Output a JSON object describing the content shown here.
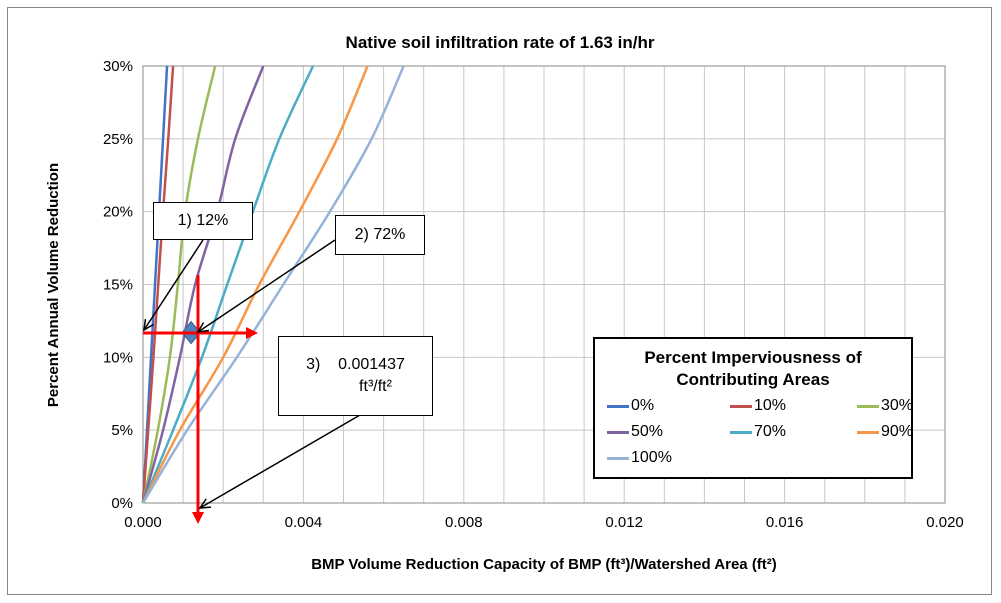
{
  "chart_data": {
    "type": "line",
    "title": "Native soil infiltration rate of 1.63 in/hr",
    "xlabel": "BMP Volume Reduction Capacity of BMP (ft³)/Watershed Area (ft²)",
    "ylabel": "Percent Annual Volume Reduction",
    "xlim": [
      0,
      0.02
    ],
    "ylim": [
      0,
      30
    ],
    "xticks": [
      "0.000",
      "0.004",
      "0.008",
      "0.012",
      "0.016",
      "0.020"
    ],
    "yticks": [
      "0%",
      "5%",
      "10%",
      "15%",
      "20%",
      "25%",
      "30%"
    ],
    "grid": true,
    "legend": {
      "title_line1": "Percent Imperviousness of",
      "title_line2": "Contributing Areas",
      "placement": "bottom-right"
    },
    "y": [
      0,
      5,
      10,
      15,
      20,
      25,
      30
    ],
    "series": [
      {
        "name": "0%",
        "color": "#4472C4",
        "x": [
          0,
          0.0001,
          0.0002,
          0.0003,
          0.0004,
          0.0005,
          0.0006
        ]
      },
      {
        "name": "10%",
        "color": "#C0504D",
        "x": [
          0,
          0.00013,
          0.00026,
          0.00038,
          0.0005,
          0.00063,
          0.00075
        ]
      },
      {
        "name": "30%",
        "color": "#9BBB59",
        "x": [
          0,
          0.00037,
          0.00067,
          0.00087,
          0.00105,
          0.00137,
          0.0018
        ]
      },
      {
        "name": "50%",
        "color": "#8064A2",
        "x": [
          0,
          0.0005,
          0.00092,
          0.0013,
          0.00185,
          0.0023,
          0.003
        ]
      },
      {
        "name": "70%",
        "color": "#4BACC6",
        "x": [
          0,
          0.00075,
          0.00147,
          0.0021,
          0.00274,
          0.0034,
          0.00424
        ]
      },
      {
        "name": "90%",
        "color": "#F79646",
        "x": [
          0,
          0.00092,
          0.002,
          0.0029,
          0.0039,
          0.00484,
          0.0056
        ]
      },
      {
        "name": "100%",
        "color": "#95B3D7",
        "x": [
          0,
          0.0011,
          0.00234,
          0.0035,
          0.00466,
          0.0057,
          0.0065
        ]
      }
    ],
    "annotations": {
      "step1": "1) 12%",
      "step2": "2) 72%",
      "step3_value": "3)    0.001437",
      "step3_unit": "ft³/ft²",
      "marker": {
        "x": 0.0012,
        "y": 11.7
      }
    }
  }
}
